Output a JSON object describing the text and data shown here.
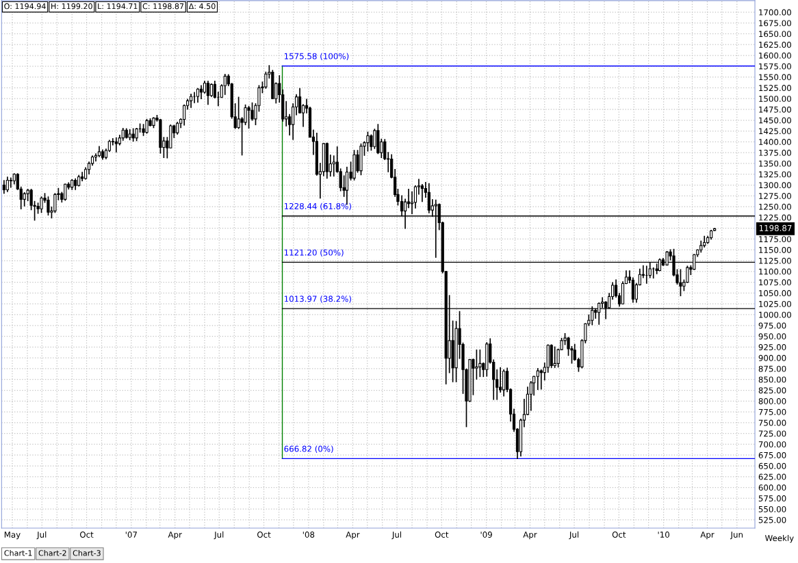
{
  "chart_data": {
    "type": "candlestick",
    "title": "O: 1194.94 H: 1199.20 L: 1194.71 C: 1198.87 Δ: 4.50",
    "color": "#000000",
    "x": [
      "2006-04-14",
      "2006-04-21",
      "2006-04-28",
      "2006-05-05",
      "2006-05-12",
      "2006-05-19",
      "2006-05-26",
      "2006-06-02",
      "2006-06-09",
      "2006-06-16",
      "2006-06-23",
      "2006-06-30",
      "2006-07-07",
      "2006-07-14",
      "2006-07-21",
      "2006-07-28",
      "2006-08-04",
      "2006-08-11",
      "2006-08-18",
      "2006-08-25",
      "2006-09-01",
      "2006-09-08",
      "2006-09-15",
      "2006-09-22",
      "2006-09-29",
      "2006-10-06",
      "2006-10-13",
      "2006-10-20",
      "2006-10-27",
      "2006-11-03",
      "2006-11-10",
      "2006-11-17",
      "2006-11-24",
      "2006-12-01",
      "2006-12-08",
      "2006-12-15",
      "2006-12-22",
      "2006-12-29",
      "2007-01-05",
      "2007-01-12",
      "2007-01-19",
      "2007-01-26",
      "2007-02-02",
      "2007-02-09",
      "2007-02-16",
      "2007-02-23",
      "2007-03-02",
      "2007-03-09",
      "2007-03-16",
      "2007-03-23",
      "2007-03-30",
      "2007-04-06",
      "2007-04-13",
      "2007-04-20",
      "2007-04-27",
      "2007-05-04",
      "2007-05-11",
      "2007-05-18",
      "2007-05-25",
      "2007-06-01",
      "2007-06-08",
      "2007-06-15",
      "2007-06-22",
      "2007-06-29",
      "2007-07-06",
      "2007-07-13",
      "2007-07-20",
      "2007-07-27",
      "2007-08-03",
      "2007-08-10",
      "2007-08-17",
      "2007-08-24",
      "2007-08-31",
      "2007-09-07",
      "2007-09-14",
      "2007-09-21",
      "2007-09-28",
      "2007-10-05",
      "2007-10-12",
      "2007-10-19",
      "2007-10-26",
      "2007-11-02",
      "2007-11-09",
      "2007-11-16",
      "2007-11-23",
      "2007-11-30",
      "2007-12-07",
      "2007-12-14",
      "2007-12-21",
      "2007-12-28",
      "2008-01-04",
      "2008-01-11",
      "2008-01-18",
      "2008-01-25",
      "2008-02-01",
      "2008-02-08",
      "2008-02-15",
      "2008-02-22",
      "2008-02-29",
      "2008-03-07",
      "2008-03-14",
      "2008-03-20",
      "2008-03-28",
      "2008-04-04",
      "2008-04-11",
      "2008-04-18",
      "2008-04-25",
      "2008-05-02",
      "2008-05-09",
      "2008-05-16",
      "2008-05-23",
      "2008-05-30",
      "2008-06-06",
      "2008-06-13",
      "2008-06-20",
      "2008-06-27",
      "2008-07-03",
      "2008-07-11",
      "2008-07-18",
      "2008-07-25",
      "2008-08-01",
      "2008-08-08",
      "2008-08-15",
      "2008-08-22",
      "2008-08-29",
      "2008-09-05",
      "2008-09-12",
      "2008-09-19",
      "2008-09-26",
      "2008-10-03",
      "2008-10-10",
      "2008-10-17",
      "2008-10-24",
      "2008-10-31",
      "2008-11-07",
      "2008-11-14",
      "2008-11-21",
      "2008-11-28",
      "2008-12-05",
      "2008-12-12",
      "2008-12-19",
      "2008-12-26",
      "2009-01-02",
      "2009-01-09",
      "2009-01-16",
      "2009-01-23",
      "2009-01-30",
      "2009-02-06",
      "2009-02-13",
      "2009-02-20",
      "2009-02-27",
      "2009-03-06",
      "2009-03-13",
      "2009-03-20",
      "2009-03-27",
      "2009-04-03",
      "2009-04-09",
      "2009-04-17",
      "2009-04-24",
      "2009-05-01",
      "2009-05-08",
      "2009-05-15",
      "2009-05-22",
      "2009-05-29",
      "2009-06-05",
      "2009-06-12",
      "2009-06-19",
      "2009-06-26",
      "2009-07-02",
      "2009-07-10",
      "2009-07-17",
      "2009-07-24",
      "2009-07-31",
      "2009-08-07",
      "2009-08-14",
      "2009-08-21",
      "2009-08-28",
      "2009-09-04",
      "2009-09-11",
      "2009-09-18",
      "2009-09-25",
      "2009-10-02",
      "2009-10-09",
      "2009-10-16",
      "2009-10-23",
      "2009-10-30",
      "2009-11-06",
      "2009-11-13",
      "2009-11-20",
      "2009-11-27",
      "2009-12-04",
      "2009-12-11",
      "2009-12-18",
      "2009-12-24",
      "2009-12-31",
      "2010-01-08",
      "2010-01-15",
      "2010-01-22",
      "2010-01-29",
      "2010-02-05",
      "2010-02-12",
      "2010-02-19",
      "2010-02-26",
      "2010-03-05",
      "2010-03-12",
      "2010-03-19",
      "2010-03-26",
      "2010-04-02",
      "2010-04-09",
      "2010-04-16"
    ],
    "ohlc": [
      [
        1300,
        1310,
        1281,
        1289
      ],
      [
        1289,
        1318,
        1285,
        1311
      ],
      [
        1311,
        1316,
        1295,
        1310
      ],
      [
        1310,
        1326,
        1303,
        1325
      ],
      [
        1325,
        1326,
        1290,
        1291
      ],
      [
        1291,
        1295,
        1245,
        1267
      ],
      [
        1267,
        1282,
        1252,
        1280
      ],
      [
        1280,
        1290,
        1264,
        1288
      ],
      [
        1288,
        1290,
        1243,
        1253
      ],
      [
        1253,
        1262,
        1219,
        1251
      ],
      [
        1251,
        1258,
        1235,
        1245
      ],
      [
        1245,
        1272,
        1237,
        1270
      ],
      [
        1270,
        1280,
        1260,
        1265
      ],
      [
        1265,
        1272,
        1231,
        1237
      ],
      [
        1237,
        1249,
        1224,
        1240
      ],
      [
        1240,
        1280,
        1237,
        1278
      ],
      [
        1278,
        1292,
        1266,
        1280
      ],
      [
        1280,
        1283,
        1261,
        1267
      ],
      [
        1267,
        1302,
        1265,
        1302
      ],
      [
        1302,
        1305,
        1291,
        1295
      ],
      [
        1295,
        1312,
        1290,
        1311
      ],
      [
        1311,
        1314,
        1290,
        1299
      ],
      [
        1299,
        1322,
        1298,
        1319
      ],
      [
        1319,
        1329,
        1310,
        1315
      ],
      [
        1315,
        1340,
        1314,
        1336
      ],
      [
        1336,
        1353,
        1326,
        1350
      ],
      [
        1350,
        1367,
        1346,
        1365
      ],
      [
        1365,
        1372,
        1356,
        1368
      ],
      [
        1368,
        1389,
        1366,
        1377
      ],
      [
        1377,
        1381,
        1360,
        1364
      ],
      [
        1364,
        1383,
        1361,
        1380
      ],
      [
        1380,
        1403,
        1378,
        1401
      ],
      [
        1401,
        1407,
        1393,
        1400
      ],
      [
        1400,
        1409,
        1377,
        1396
      ],
      [
        1396,
        1415,
        1393,
        1409
      ],
      [
        1409,
        1431,
        1404,
        1427
      ],
      [
        1427,
        1430,
        1409,
        1410
      ],
      [
        1410,
        1428,
        1405,
        1418
      ],
      [
        1418,
        1430,
        1402,
        1409
      ],
      [
        1409,
        1431,
        1403,
        1430
      ],
      [
        1430,
        1441,
        1423,
        1430
      ],
      [
        1430,
        1440,
        1415,
        1422
      ],
      [
        1422,
        1452,
        1420,
        1449
      ],
      [
        1449,
        1453,
        1437,
        1438
      ],
      [
        1438,
        1456,
        1433,
        1455
      ],
      [
        1455,
        1461,
        1448,
        1451
      ],
      [
        1451,
        1452,
        1374,
        1387
      ],
      [
        1387,
        1410,
        1364,
        1402
      ],
      [
        1402,
        1410,
        1363,
        1386
      ],
      [
        1386,
        1439,
        1386,
        1437
      ],
      [
        1437,
        1438,
        1410,
        1421
      ],
      [
        1421,
        1445,
        1418,
        1443
      ],
      [
        1443,
        1453,
        1433,
        1452
      ],
      [
        1452,
        1485,
        1439,
        1484
      ],
      [
        1484,
        1498,
        1476,
        1495
      ],
      [
        1495,
        1510,
        1480,
        1505
      ],
      [
        1505,
        1514,
        1491,
        1505
      ],
      [
        1505,
        1523,
        1492,
        1522
      ],
      [
        1522,
        1530,
        1500,
        1515
      ],
      [
        1515,
        1540,
        1513,
        1536
      ],
      [
        1536,
        1540,
        1487,
        1507
      ],
      [
        1507,
        1534,
        1505,
        1533
      ],
      [
        1533,
        1540,
        1502,
        1503
      ],
      [
        1503,
        1515,
        1484,
        1503
      ],
      [
        1503,
        1532,
        1503,
        1530
      ],
      [
        1530,
        1556,
        1510,
        1552
      ],
      [
        1552,
        1555,
        1530,
        1534
      ],
      [
        1534,
        1535,
        1455,
        1458
      ],
      [
        1458,
        1488,
        1431,
        1433
      ],
      [
        1433,
        1503,
        1431,
        1453
      ],
      [
        1453,
        1456,
        1370,
        1445
      ],
      [
        1445,
        1485,
        1440,
        1479
      ],
      [
        1479,
        1482,
        1432,
        1473
      ],
      [
        1473,
        1490,
        1450,
        1453
      ],
      [
        1453,
        1488,
        1440,
        1484
      ],
      [
        1484,
        1530,
        1471,
        1525
      ],
      [
        1525,
        1538,
        1514,
        1527
      ],
      [
        1527,
        1561,
        1524,
        1557
      ],
      [
        1557,
        1576,
        1548,
        1561
      ],
      [
        1561,
        1565,
        1500,
        1500
      ],
      [
        1500,
        1536,
        1490,
        1535
      ],
      [
        1535,
        1553,
        1492,
        1509
      ],
      [
        1509,
        1520,
        1448,
        1453
      ],
      [
        1453,
        1493,
        1437,
        1458
      ],
      [
        1458,
        1463,
        1416,
        1440
      ],
      [
        1440,
        1488,
        1406,
        1481
      ],
      [
        1481,
        1509,
        1463,
        1504
      ],
      [
        1504,
        1523,
        1467,
        1467
      ],
      [
        1467,
        1486,
        1436,
        1484
      ],
      [
        1484,
        1498,
        1467,
        1478
      ],
      [
        1478,
        1480,
        1411,
        1411
      ],
      [
        1411,
        1427,
        1371,
        1401
      ],
      [
        1401,
        1420,
        1323,
        1325
      ],
      [
        1325,
        1350,
        1270,
        1331
      ],
      [
        1331,
        1396,
        1322,
        1396
      ],
      [
        1396,
        1397,
        1316,
        1331
      ],
      [
        1331,
        1369,
        1321,
        1349
      ],
      [
        1349,
        1367,
        1321,
        1353
      ],
      [
        1353,
        1388,
        1330,
        1331
      ],
      [
        1331,
        1337,
        1287,
        1294
      ],
      [
        1294,
        1321,
        1274,
        1288
      ],
      [
        1288,
        1341,
        1256,
        1330
      ],
      [
        1330,
        1353,
        1312,
        1316
      ],
      [
        1316,
        1380,
        1312,
        1370
      ],
      [
        1370,
        1380,
        1330,
        1333
      ],
      [
        1333,
        1395,
        1324,
        1390
      ],
      [
        1390,
        1400,
        1369,
        1398
      ],
      [
        1398,
        1422,
        1379,
        1414
      ],
      [
        1414,
        1416,
        1381,
        1389
      ],
      [
        1389,
        1429,
        1385,
        1426
      ],
      [
        1426,
        1440,
        1373,
        1375
      ],
      [
        1375,
        1406,
        1364,
        1400
      ],
      [
        1400,
        1405,
        1359,
        1361
      ],
      [
        1361,
        1375,
        1331,
        1360
      ],
      [
        1360,
        1370,
        1317,
        1318
      ],
      [
        1318,
        1336,
        1274,
        1278
      ],
      [
        1278,
        1290,
        1254,
        1262
      ],
      [
        1262,
        1275,
        1229,
        1240
      ],
      [
        1240,
        1267,
        1200,
        1261
      ],
      [
        1261,
        1290,
        1248,
        1257
      ],
      [
        1257,
        1284,
        1234,
        1260
      ],
      [
        1260,
        1298,
        1247,
        1296
      ],
      [
        1296,
        1313,
        1279,
        1298
      ],
      [
        1298,
        1301,
        1262,
        1292
      ],
      [
        1292,
        1306,
        1272,
        1283
      ],
      [
        1283,
        1303,
        1236,
        1242
      ],
      [
        1242,
        1266,
        1228,
        1252
      ],
      [
        1252,
        1265,
        1133,
        1255
      ],
      [
        1255,
        1256,
        1197,
        1213
      ],
      [
        1213,
        1214,
        1097,
        1100
      ],
      [
        1100,
        1100,
        840,
        899
      ],
      [
        899,
        1044,
        866,
        940
      ],
      [
        940,
        985,
        845,
        877
      ],
      [
        877,
        984,
        845,
        968
      ],
      [
        968,
        1007,
        899,
        931
      ],
      [
        931,
        934,
        818,
        873
      ],
      [
        873,
        874,
        741,
        800
      ],
      [
        800,
        896,
        799,
        896
      ],
      [
        896,
        897,
        815,
        876
      ],
      [
        876,
        918,
        851,
        879
      ],
      [
        879,
        918,
        857,
        887
      ],
      [
        887,
        888,
        857,
        873
      ],
      [
        873,
        935,
        858,
        932
      ],
      [
        932,
        944,
        888,
        890
      ],
      [
        890,
        895,
        804,
        850
      ],
      [
        850,
        872,
        804,
        832
      ],
      [
        832,
        877,
        821,
        826
      ],
      [
        826,
        872,
        812,
        869
      ],
      [
        869,
        876,
        822,
        827
      ],
      [
        827,
        828,
        754,
        770
      ],
      [
        770,
        781,
        730,
        735
      ],
      [
        735,
        736,
        667,
        683
      ],
      [
        683,
        758,
        673,
        756
      ],
      [
        756,
        804,
        741,
        769
      ],
      [
        769,
        832,
        769,
        816
      ],
      [
        816,
        845,
        779,
        842
      ],
      [
        842,
        857,
        814,
        857
      ],
      [
        857,
        875,
        827,
        870
      ],
      [
        870,
        872,
        828,
        866
      ],
      [
        866,
        888,
        849,
        878
      ],
      [
        878,
        930,
        867,
        929
      ],
      [
        929,
        930,
        878,
        882
      ],
      [
        882,
        925,
        878,
        887
      ],
      [
        887,
        920,
        879,
        919
      ],
      [
        919,
        945,
        919,
        940
      ],
      [
        940,
        956,
        931,
        946
      ],
      [
        946,
        947,
        906,
        921
      ],
      [
        921,
        926,
        888,
        918
      ],
      [
        918,
        931,
        895,
        896
      ],
      [
        896,
        899,
        869,
        879
      ],
      [
        879,
        942,
        877,
        940
      ],
      [
        940,
        979,
        935,
        979
      ],
      [
        979,
        999,
        975,
        987
      ],
      [
        987,
        1018,
        977,
        1010
      ],
      [
        1010,
        1013,
        992,
        1005
      ],
      [
        1005,
        1027,
        978,
        1026
      ],
      [
        1026,
        1039,
        1017,
        1029
      ],
      [
        1029,
        1030,
        991,
        1016
      ],
      [
        1016,
        1049,
        1016,
        1042
      ],
      [
        1042,
        1074,
        1036,
        1068
      ],
      [
        1068,
        1080,
        1041,
        1044
      ],
      [
        1044,
        1049,
        1020,
        1025
      ],
      [
        1025,
        1076,
        1025,
        1072
      ],
      [
        1072,
        1101,
        1072,
        1087
      ],
      [
        1087,
        1101,
        1074,
        1080
      ],
      [
        1080,
        1085,
        1029,
        1036
      ],
      [
        1036,
        1072,
        1029,
        1069
      ],
      [
        1069,
        1105,
        1069,
        1093
      ],
      [
        1093,
        1113,
        1086,
        1091
      ],
      [
        1091,
        1112,
        1073,
        1091
      ],
      [
        1091,
        1119,
        1086,
        1106
      ],
      [
        1106,
        1108,
        1085,
        1106
      ],
      [
        1106,
        1117,
        1095,
        1102
      ],
      [
        1102,
        1129,
        1102,
        1127
      ],
      [
        1127,
        1130,
        1114,
        1115
      ],
      [
        1115,
        1146,
        1115,
        1145
      ],
      [
        1145,
        1150,
        1127,
        1136
      ],
      [
        1136,
        1151,
        1090,
        1092
      ],
      [
        1092,
        1104,
        1071,
        1074
      ],
      [
        1074,
        1104,
        1044,
        1066
      ],
      [
        1066,
        1080,
        1056,
        1075
      ],
      [
        1075,
        1112,
        1075,
        1109
      ],
      [
        1109,
        1113,
        1093,
        1105
      ],
      [
        1105,
        1139,
        1105,
        1139
      ],
      [
        1139,
        1150,
        1135,
        1150
      ],
      [
        1150,
        1170,
        1145,
        1160
      ],
      [
        1160,
        1181,
        1157,
        1167
      ],
      [
        1167,
        1181,
        1165,
        1178
      ],
      [
        1178,
        1195,
        1175,
        1194
      ],
      [
        1194.94,
        1199.2,
        1194.71,
        1198.87
      ]
    ],
    "xlim": [
      "2006-04-09",
      "2010-07-08"
    ],
    "xticks": [
      {
        "value": "2006-05-01",
        "label": "May"
      },
      {
        "value": "2006-06-01",
        "label": null
      },
      {
        "value": "2006-07-01",
        "label": "Jul"
      },
      {
        "value": "2006-08-01",
        "label": null
      },
      {
        "value": "2006-09-01",
        "label": null
      },
      {
        "value": "2006-10-01",
        "label": "Oct"
      },
      {
        "value": "2006-11-01",
        "label": null
      },
      {
        "value": "2006-12-01",
        "label": null
      },
      {
        "value": "2007-01-01",
        "label": "'07"
      },
      {
        "value": "2007-02-01",
        "label": null
      },
      {
        "value": "2007-03-01",
        "label": null
      },
      {
        "value": "2007-04-01",
        "label": "Apr"
      },
      {
        "value": "2007-05-01",
        "label": null
      },
      {
        "value": "2007-06-01",
        "label": null
      },
      {
        "value": "2007-07-01",
        "label": "Jul"
      },
      {
        "value": "2007-08-01",
        "label": null
      },
      {
        "value": "2007-09-01",
        "label": null
      },
      {
        "value": "2007-10-01",
        "label": "Oct"
      },
      {
        "value": "2007-11-01",
        "label": null
      },
      {
        "value": "2007-12-01",
        "label": null
      },
      {
        "value": "2008-01-01",
        "label": "'08"
      },
      {
        "value": "2008-02-01",
        "label": null
      },
      {
        "value": "2008-03-01",
        "label": null
      },
      {
        "value": "2008-04-01",
        "label": "Apr"
      },
      {
        "value": "2008-05-01",
        "label": null
      },
      {
        "value": "2008-06-01",
        "label": null
      },
      {
        "value": "2008-07-01",
        "label": "Jul"
      },
      {
        "value": "2008-08-01",
        "label": null
      },
      {
        "value": "2008-09-01",
        "label": null
      },
      {
        "value": "2008-10-01",
        "label": "Oct"
      },
      {
        "value": "2008-11-01",
        "label": null
      },
      {
        "value": "2008-12-01",
        "label": null
      },
      {
        "value": "2009-01-01",
        "label": "'09"
      },
      {
        "value": "2009-02-01",
        "label": null
      },
      {
        "value": "2009-03-01",
        "label": null
      },
      {
        "value": "2009-04-01",
        "label": "Apr"
      },
      {
        "value": "2009-05-01",
        "label": null
      },
      {
        "value": "2009-06-01",
        "label": null
      },
      {
        "value": "2009-07-01",
        "label": "Jul"
      },
      {
        "value": "2009-08-01",
        "label": null
      },
      {
        "value": "2009-09-01",
        "label": null
      },
      {
        "value": "2009-10-01",
        "label": "Oct"
      },
      {
        "value": "2009-11-01",
        "label": null
      },
      {
        "value": "2009-12-01",
        "label": null
      },
      {
        "value": "2010-01-01",
        "label": "'10"
      },
      {
        "value": "2010-02-01",
        "label": null
      },
      {
        "value": "2010-03-01",
        "label": null
      },
      {
        "value": "2010-04-01",
        "label": "Apr"
      },
      {
        "value": "2010-05-01",
        "label": null
      },
      {
        "value": "2010-06-01",
        "label": "Jun"
      }
    ],
    "ylim": [
      506,
      1727
    ],
    "yticks": [
      {
        "value": 525,
        "label": "525.00"
      },
      {
        "value": 550,
        "label": "550.00"
      },
      {
        "value": 575,
        "label": "575.00"
      },
      {
        "value": 600,
        "label": "600.00"
      },
      {
        "value": 625,
        "label": "625.00"
      },
      {
        "value": 650,
        "label": "650.00"
      },
      {
        "value": 675,
        "label": "675.00"
      },
      {
        "value": 700,
        "label": "700.00"
      },
      {
        "value": 725,
        "label": "725.00"
      },
      {
        "value": 750,
        "label": "750.00"
      },
      {
        "value": 775,
        "label": "775.00"
      },
      {
        "value": 800,
        "label": "800.00"
      },
      {
        "value": 825,
        "label": "825.00"
      },
      {
        "value": 850,
        "label": "850.00"
      },
      {
        "value": 875,
        "label": "875.00"
      },
      {
        "value": 900,
        "label": "900.00"
      },
      {
        "value": 925,
        "label": "925.00"
      },
      {
        "value": 950,
        "label": "950.00"
      },
      {
        "value": 975,
        "label": "975.00"
      },
      {
        "value": 1000,
        "label": "1000.00"
      },
      {
        "value": 1025,
        "label": "1025.00"
      },
      {
        "value": 1050,
        "label": "1050.00"
      },
      {
        "value": 1075,
        "label": "1075.00"
      },
      {
        "value": 1100,
        "label": "1100.00"
      },
      {
        "value": 1125,
        "label": "1125.00"
      },
      {
        "value": 1150,
        "label": "1150.00"
      },
      {
        "value": 1175,
        "label": "1175.00"
      },
      {
        "value": 1200,
        "label": null
      },
      {
        "value": 1225,
        "label": "1225.00"
      },
      {
        "value": 1250,
        "label": "1250.00"
      },
      {
        "value": 1275,
        "label": "1275.00"
      },
      {
        "value": 1300,
        "label": "1300.00"
      },
      {
        "value": 1325,
        "label": "1325.00"
      },
      {
        "value": 1350,
        "label": "1350.00"
      },
      {
        "value": 1375,
        "label": "1375.00"
      },
      {
        "value": 1400,
        "label": "1400.00"
      },
      {
        "value": 1425,
        "label": "1425.00"
      },
      {
        "value": 1450,
        "label": "1450.00"
      },
      {
        "value": 1475,
        "label": "1475.00"
      },
      {
        "value": 1500,
        "label": "1500.00"
      },
      {
        "value": 1525,
        "label": "1525.00"
      },
      {
        "value": 1550,
        "label": "1550.00"
      },
      {
        "value": 1575,
        "label": "1575.00"
      },
      {
        "value": 1600,
        "label": "1600.00"
      },
      {
        "value": 1625,
        "label": "1625.00"
      },
      {
        "value": 1650,
        "label": "1650.00"
      },
      {
        "value": 1675,
        "label": "1675.00"
      },
      {
        "value": 1700,
        "label": "1700.00"
      }
    ],
    "grid": true,
    "legend": false,
    "ref_lines": [
      {
        "axis": "x",
        "value": "2007-11-08",
        "color": "#008000"
      },
      {
        "axis": "y",
        "value": 1575.58,
        "label": "1575.58 (100%)",
        "color": "#0000ff"
      },
      {
        "axis": "y",
        "value": 1228.44,
        "label": "1228.44 (61.8%)",
        "color": "#000000"
      },
      {
        "axis": "y",
        "value": 1121.2,
        "label": "1121.20 (50%)",
        "color": "#000000"
      },
      {
        "axis": "y",
        "value": 1013.97,
        "label": "1013.97 (38.2%)",
        "color": "#000000"
      },
      {
        "axis": "y",
        "value": 666.82,
        "label": "666.82 (0%)",
        "color": "#0000ff"
      }
    ],
    "annotations": [
      "Weekly",
      "Chart-1",
      "Chart-2",
      "Chart-3",
      "1198.87"
    ]
  }
}
